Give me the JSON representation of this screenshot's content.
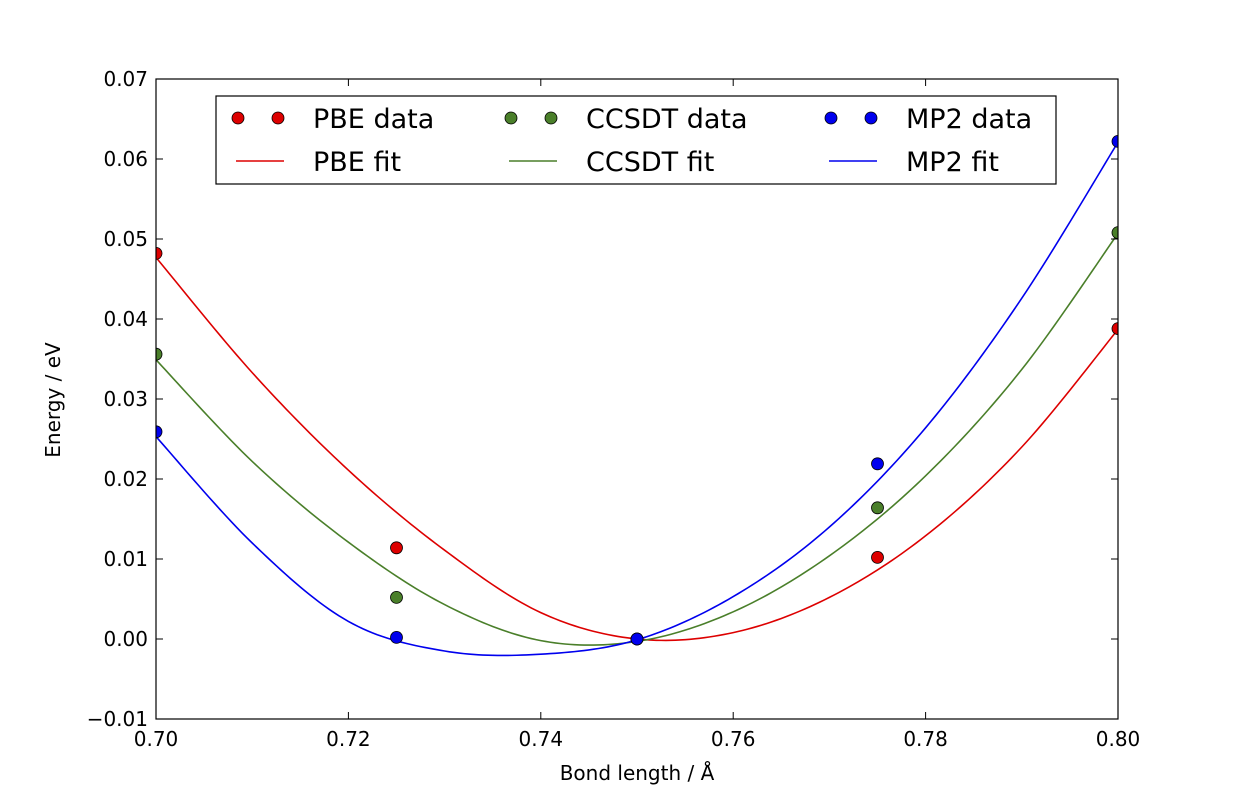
{
  "chart_data": {
    "type": "scatter",
    "title": "",
    "xlabel": "Bond length / Å",
    "ylabel": "Energy / eV",
    "xlim": [
      0.7,
      0.8
    ],
    "ylim": [
      -0.01,
      0.07
    ],
    "xticks": [
      0.7,
      0.72,
      0.74,
      0.76,
      0.78,
      0.8
    ],
    "xtick_labels": [
      "0.70",
      "0.72",
      "0.74",
      "0.76",
      "0.78",
      "0.80"
    ],
    "yticks": [
      -0.01,
      0.0,
      0.01,
      0.02,
      0.03,
      0.04,
      0.05,
      0.06,
      0.07
    ],
    "ytick_labels": [
      "−0.01",
      "0.00",
      "0.01",
      "0.02",
      "0.03",
      "0.04",
      "0.05",
      "0.06",
      "0.07"
    ],
    "grid": false,
    "legend": {
      "placement": "top-center",
      "columns": 3
    },
    "series": [
      {
        "name": "PBE data",
        "kind": "points",
        "color": "#dd0000",
        "x": [
          0.7,
          0.725,
          0.75,
          0.775,
          0.8
        ],
        "y": [
          0.0482,
          0.0114,
          0.0,
          0.0102,
          0.0388
        ]
      },
      {
        "name": "CCSDT data",
        "kind": "points",
        "color": "#4a7f2a",
        "x": [
          0.7,
          0.725,
          0.75,
          0.775,
          0.8
        ],
        "y": [
          0.0356,
          0.0052,
          0.0,
          0.0164,
          0.0508
        ]
      },
      {
        "name": "MP2 data",
        "kind": "points",
        "color": "#0000ee",
        "x": [
          0.7,
          0.725,
          0.75,
          0.775,
          0.8
        ],
        "y": [
          0.0259,
          0.0002,
          0.0,
          0.0219,
          0.0622
        ]
      },
      {
        "name": "PBE fit",
        "kind": "line",
        "color": "#dd0000",
        "x": [
          0.7,
          0.71,
          0.72,
          0.73,
          0.74,
          0.75,
          0.76,
          0.77,
          0.78,
          0.79,
          0.8
        ],
        "y": [
          0.0477,
          0.0333,
          0.0211,
          0.0111,
          0.0033,
          0.0,
          0.0008,
          0.0052,
          0.0129,
          0.024,
          0.0387
        ]
      },
      {
        "name": "CCSDT fit",
        "kind": "line",
        "color": "#4a7f2a",
        "x": [
          0.7,
          0.71,
          0.72,
          0.73,
          0.74,
          0.75,
          0.76,
          0.77,
          0.78,
          0.79,
          0.8
        ],
        "y": [
          0.0349,
          0.0222,
          0.0121,
          0.0043,
          -0.0002,
          -0.0003,
          0.0034,
          0.0104,
          0.0204,
          0.0337,
          0.0507
        ]
      },
      {
        "name": "MP2 fit",
        "kind": "line",
        "color": "#0000ee",
        "x": [
          0.7,
          0.71,
          0.72,
          0.73,
          0.74,
          0.75,
          0.76,
          0.77,
          0.78,
          0.79,
          0.8
        ],
        "y": [
          0.0253,
          0.012,
          0.0022,
          -0.0015,
          -0.0019,
          -0.0001,
          0.0053,
          0.014,
          0.0264,
          0.0426,
          0.0621
        ]
      }
    ]
  }
}
